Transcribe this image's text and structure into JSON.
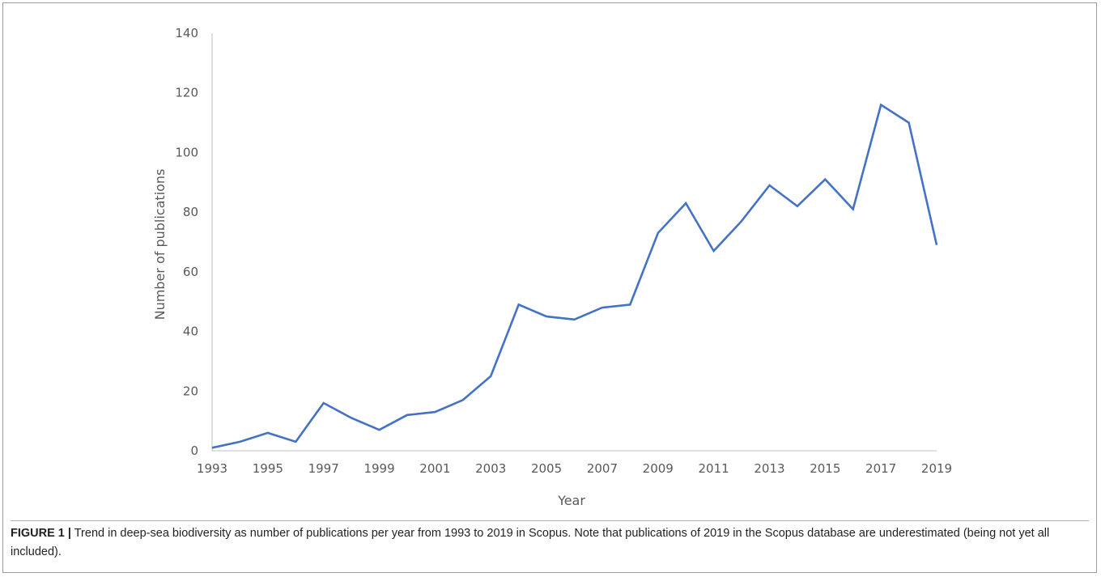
{
  "chart_data": {
    "type": "line",
    "title": "",
    "xlabel": "Year",
    "ylabel": "Number  of  publications",
    "xlim": [
      1993,
      2019
    ],
    "ylim": [
      0,
      140
    ],
    "yticks": [
      0,
      20,
      40,
      60,
      80,
      100,
      120,
      140
    ],
    "xticks": [
      1993,
      1995,
      1997,
      1999,
      2001,
      2003,
      2005,
      2007,
      2009,
      2011,
      2013,
      2015,
      2017,
      2019
    ],
    "grid": false,
    "legend": "none",
    "series": [
      {
        "color": "#4472c4",
        "x": [
          1993,
          1994,
          1995,
          1996,
          1997,
          1998,
          1999,
          2000,
          2001,
          2002,
          2003,
          2004,
          2005,
          2006,
          2007,
          2008,
          2009,
          2010,
          2011,
          2012,
          2013,
          2014,
          2015,
          2016,
          2017,
          2018,
          2019
        ],
        "y": [
          1,
          3,
          6,
          3,
          16,
          11,
          7,
          12,
          13,
          17,
          25,
          49,
          45,
          44,
          48,
          49,
          73,
          83,
          67,
          77,
          89,
          82,
          91,
          81,
          116,
          110,
          69
        ]
      }
    ]
  },
  "caption": {
    "label": "FIGURE 1 |",
    "text": " Trend in deep-sea biodiversity as number of publications per year from 1993 to 2019 in Scopus. Note that publications of 2019 in the Scopus database are underestimated (being not yet all included)."
  }
}
